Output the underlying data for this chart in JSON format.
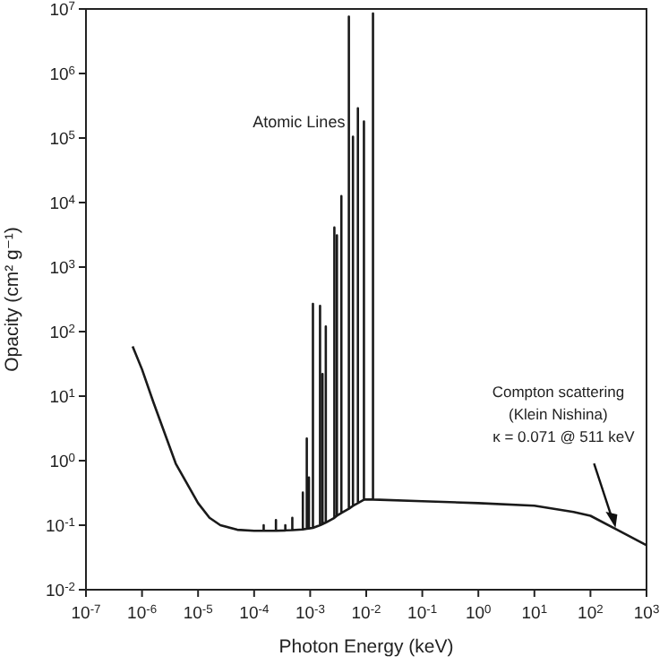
{
  "chart_data": {
    "type": "line",
    "xlabel": "Photon Energy (keV)",
    "ylabel": "Opacity (cm² g⁻¹)",
    "log": "xy",
    "grid": false,
    "marker": "none",
    "line_style": "solid",
    "xlim": [
      1e-07,
      1000
    ],
    "ylim": [
      0.01,
      10000000
    ],
    "xticks": [
      {
        "value": 1e-07,
        "label": "10$^{-7}$"
      },
      {
        "value": 1e-06,
        "label": "10$^{-6}$"
      },
      {
        "value": 1e-05,
        "label": "10$^{-5}$"
      },
      {
        "value": 0.0001,
        "label": "10$^{-4}$"
      },
      {
        "value": 0.001,
        "label": "10$^{-3}$"
      },
      {
        "value": 0.01,
        "label": "10$^{-2}$"
      },
      {
        "value": 0.1,
        "label": "10$^{-1}$"
      },
      {
        "value": 1,
        "label": "10$^{0}$"
      },
      {
        "value": 10,
        "label": "10$^{1}$"
      },
      {
        "value": 100,
        "label": "10$^{2}$"
      },
      {
        "value": 1000,
        "label": "10$^{3}$"
      }
    ],
    "yticks": [
      {
        "value": 0.01,
        "label": "10$^{-2}$"
      },
      {
        "value": 0.1,
        "label": "10$^{-1}$"
      },
      {
        "value": 1,
        "label": "10$^{0}$"
      },
      {
        "value": 10,
        "label": "10$^{1}$"
      },
      {
        "value": 100,
        "label": "10$^{2}$"
      },
      {
        "value": 1000,
        "label": "10$^{3}$"
      },
      {
        "value": 10000,
        "label": "10$^{4}$"
      },
      {
        "value": 100000,
        "label": "10$^{5}$"
      },
      {
        "value": 1000000,
        "label": "10$^{6}$"
      },
      {
        "value": 10000000,
        "label": "10$^{7}$"
      }
    ],
    "annotations": [
      "Atomic Lines",
      {
        "text": "Compton scattering\n(Klein Nishina)\nκ = 0.071 @ 511 keV",
        "x": 280,
        "y": 0.085
      }
    ],
    "series": [
      {
        "color": "#1a1a1a",
        "x": [
          6.8e-07,
          1e-06,
          1.6e-06,
          4e-06,
          1e-05,
          1.6e-05,
          2.5e-05,
          5e-05,
          0.0001,
          0.000148,
          0.000148,
          0.000148,
          0.000245,
          0.000245,
          0.000245,
          0.00036,
          0.00036,
          0.00036,
          0.00048,
          0.00048,
          0.00048,
          0.00074,
          0.00074,
          0.00074,
          0.00087,
          0.00087,
          0.00087,
          0.00095,
          0.00095,
          0.00095,
          0.00112,
          0.00112,
          0.00112,
          0.0015,
          0.0015,
          0.0015,
          0.00166,
          0.00166,
          0.00166,
          0.0019,
          0.0019,
          0.0019,
          0.0027,
          0.0027,
          0.0027,
          0.003,
          0.003,
          0.003,
          0.0036,
          0.0036,
          0.0036,
          0.0049,
          0.0049,
          0.0049,
          0.0058,
          0.0058,
          0.0058,
          0.0071,
          0.0071,
          0.0071,
          0.0089,
          0.0091,
          0.0091,
          0.0091,
          0.0132,
          0.0132,
          0.0132,
          0.1,
          1,
          10,
          50,
          100,
          300,
          1000
        ],
        "values": [
          59,
          26,
          8,
          0.9,
          0.22,
          0.13,
          0.1,
          0.085,
          0.082,
          0.082,
          0.1,
          0.082,
          0.082,
          0.12,
          0.082,
          0.083,
          0.1,
          0.083,
          0.084,
          0.13,
          0.084,
          0.086,
          0.32,
          0.086,
          0.088,
          2.2,
          0.088,
          0.089,
          0.55,
          0.089,
          0.091,
          270,
          0.091,
          0.1,
          250,
          0.1,
          0.104,
          22,
          0.104,
          0.11,
          120,
          0.11,
          0.13,
          4100,
          0.13,
          0.14,
          3100,
          0.14,
          0.155,
          12600,
          0.155,
          0.18,
          7600000,
          0.18,
          0.2,
          105000,
          0.2,
          0.22,
          290000,
          0.22,
          0.245,
          0.25,
          180000,
          0.25,
          0.25,
          8500000,
          0.25,
          0.235,
          0.22,
          0.2,
          0.16,
          0.14,
          0.085,
          0.049
        ]
      }
    ]
  }
}
